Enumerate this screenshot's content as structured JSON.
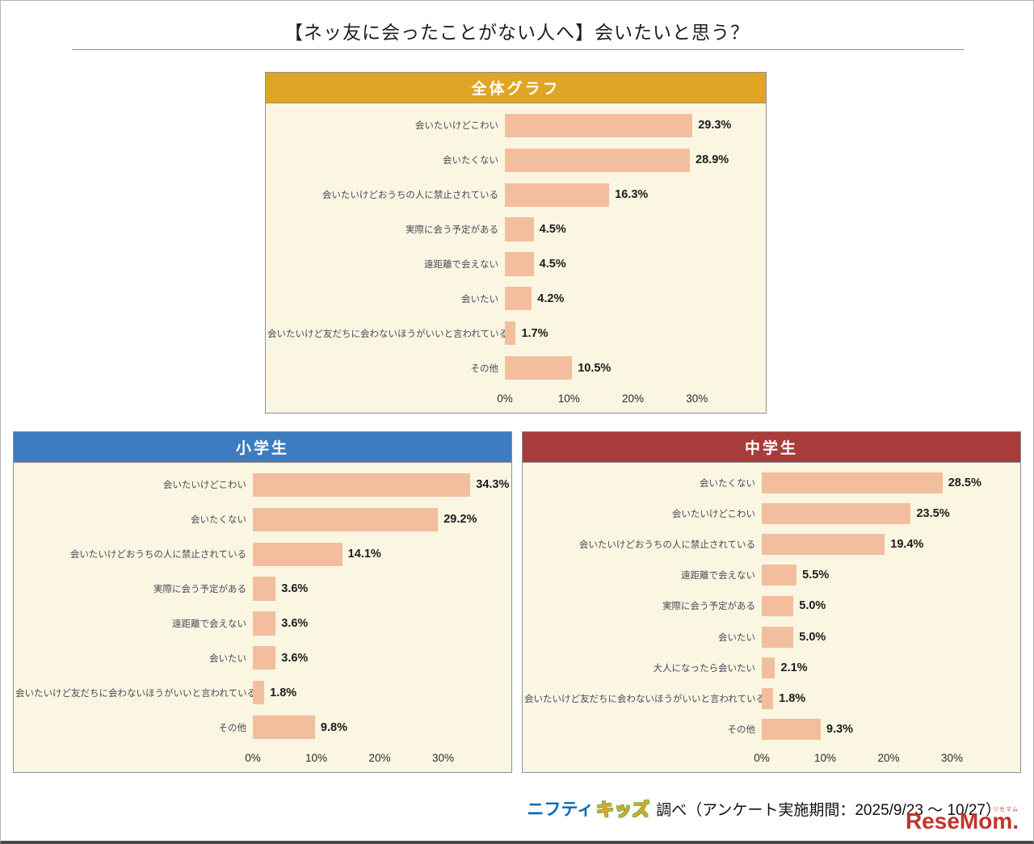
{
  "page_title": "【ネッ友に会ったことがない人へ】会いたいと思う？",
  "colors": {
    "bar": "#F2BE9D",
    "chart_bg": "#FBF6E2",
    "chart_border": "#8F8F8F",
    "overall_header": "#E0A524",
    "elementary_header": "#3D7CC1",
    "middle_header": "#A93B3B"
  },
  "chart_data": [
    {
      "type": "bar",
      "orientation": "horizontal",
      "title": "全体グラフ",
      "header_color": "#E0A524",
      "categories": [
        "会いたいけどこわい",
        "会いたくない",
        "会いたいけどおうちの人に禁止されている",
        "実際に会う予定がある",
        "遠距離で会えない",
        "会いたい",
        "会いたいけど友だちに会わないほうがいいと言われている",
        "その他"
      ],
      "values": [
        29.3,
        28.9,
        16.3,
        4.5,
        4.5,
        4.2,
        1.7,
        10.5
      ],
      "unit": "%",
      "xlim": [
        0,
        40
      ],
      "x_ticks": [
        0,
        10,
        20,
        30
      ],
      "grid": false,
      "legend": false
    },
    {
      "type": "bar",
      "orientation": "horizontal",
      "title": "小学生",
      "header_color": "#3D7CC1",
      "categories": [
        "会いたいけどこわい",
        "会いたくない",
        "会いたいけどおうちの人に禁止されている",
        "実際に会う予定がある",
        "遠距離で会えない",
        "会いたい",
        "会いたいけど友だちに会わないほうがいいと言われている",
        "その他"
      ],
      "values": [
        34.3,
        29.2,
        14.1,
        3.6,
        3.6,
        3.6,
        1.8,
        9.8
      ],
      "unit": "%",
      "xlim": [
        0,
        40
      ],
      "x_ticks": [
        0,
        10,
        20,
        30
      ],
      "grid": false,
      "legend": false
    },
    {
      "type": "bar",
      "orientation": "horizontal",
      "title": "中学生",
      "header_color": "#A93B3B",
      "categories": [
        "会いたくない",
        "会いたいけどこわい",
        "会いたいけどおうちの人に禁止されている",
        "遠距離で会えない",
        "実際に会う予定がある",
        "会いたい",
        "大人になったら会いたい",
        "会いたいけど友だちに会わないほうがいいと言われている",
        "その他"
      ],
      "values": [
        28.5,
        23.5,
        19.4,
        5.5,
        5.0,
        5.0,
        2.1,
        1.8,
        9.3
      ],
      "unit": "%",
      "xlim": [
        0,
        40
      ],
      "x_ticks": [
        0,
        10,
        20,
        30
      ],
      "grid": false,
      "legend": false
    }
  ],
  "footer": {
    "nifty": "ニフティ",
    "kids": "キッズ",
    "survey_text": "調べ（アンケート実施期間：2025/9/23 ～ 10/27）"
  },
  "resemom": {
    "main": "ReseMom.",
    "sub": "リセマム"
  }
}
